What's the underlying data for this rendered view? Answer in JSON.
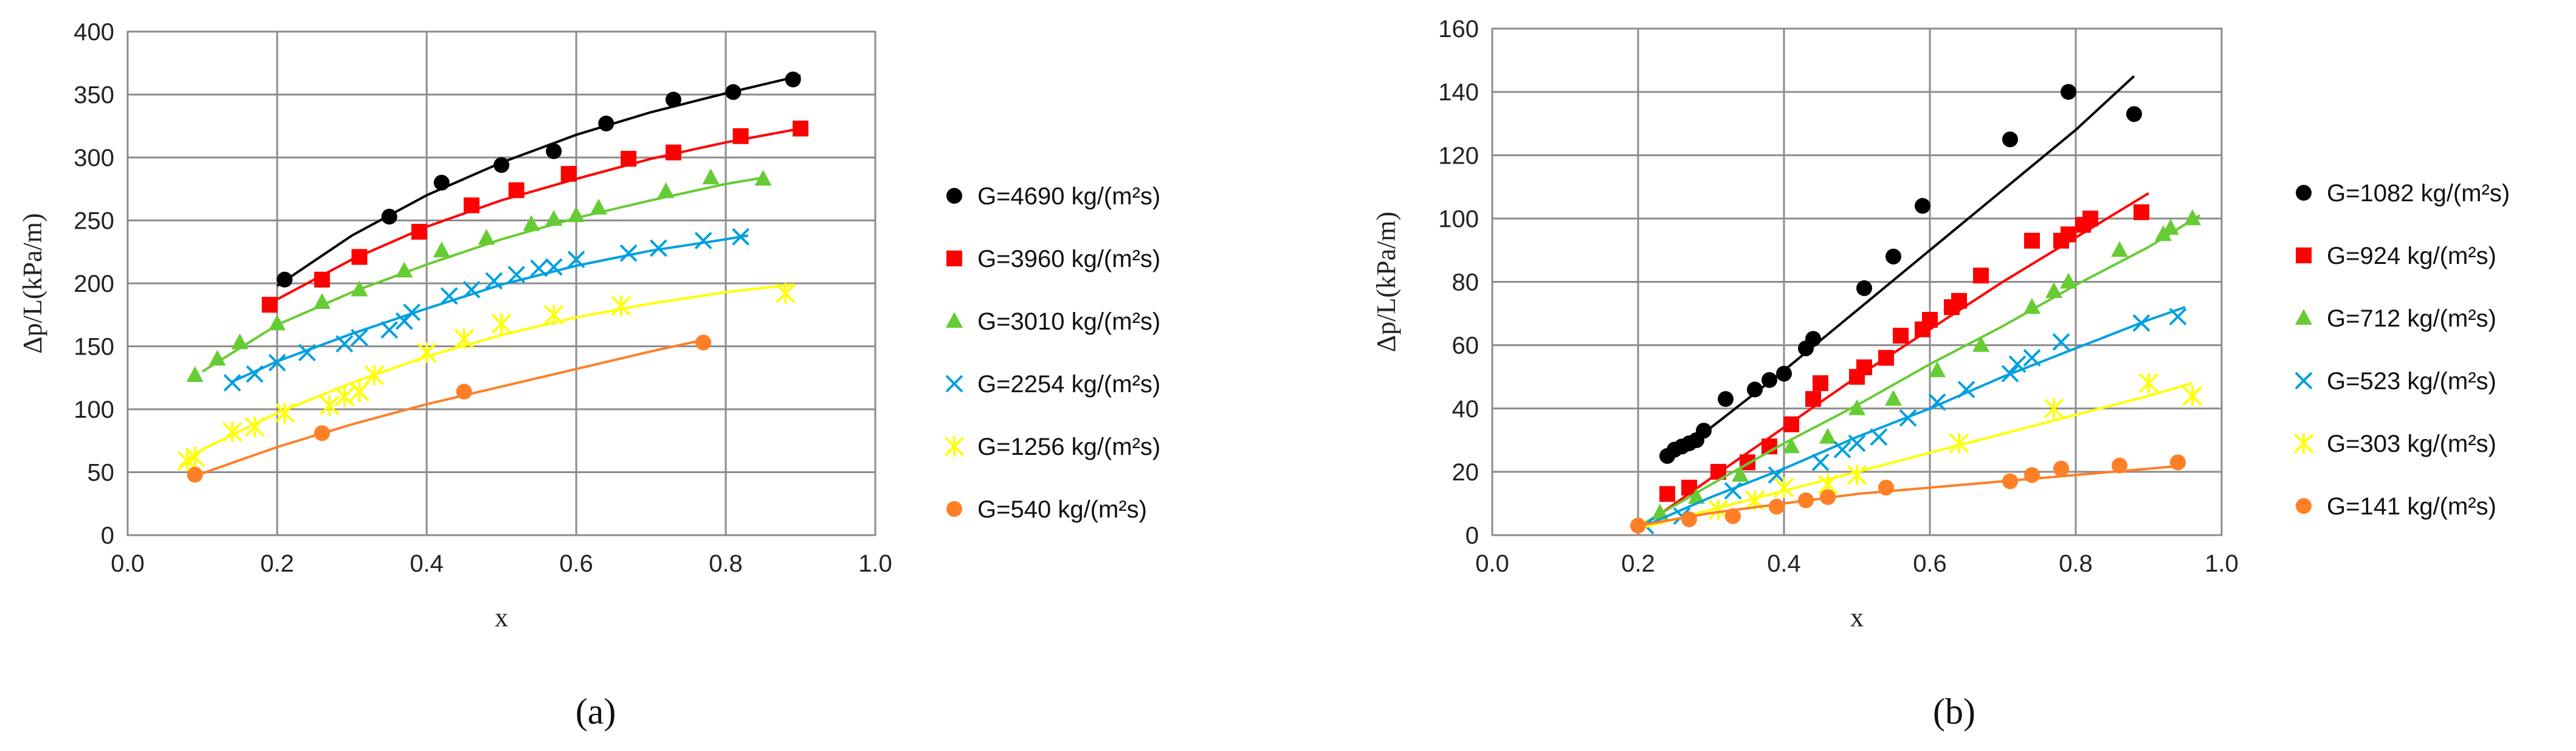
{
  "figure": {
    "panel_a_label": "(a)",
    "panel_b_label": "(b)"
  },
  "chart_data": [
    {
      "id": "a",
      "type": "scatter",
      "panel_label": "(a)",
      "xlabel": "x",
      "ylabel": "Δp/L(kPa/m)",
      "xlim": [
        0.0,
        1.0
      ],
      "ylim": [
        0,
        400
      ],
      "xticks": [
        0.0,
        0.2,
        0.4,
        0.6,
        0.8,
        1.0
      ],
      "xtick_labels": [
        "0.0",
        "0.2",
        "0.4",
        "0.6",
        "0.8",
        "1.0"
      ],
      "yticks": [
        0,
        50,
        100,
        150,
        200,
        250,
        300,
        350,
        400
      ],
      "ytick_labels": [
        "0",
        "50",
        "100",
        "150",
        "200",
        "250",
        "300",
        "350",
        "400"
      ],
      "grid": true,
      "legend_position": "right",
      "series": [
        {
          "name": "G=4690 kg/(m²s)",
          "color": "#000000",
          "marker": "circle",
          "x": [
            0.21,
            0.35,
            0.42,
            0.5,
            0.57,
            0.64,
            0.73,
            0.81,
            0.89
          ],
          "y": [
            203,
            253,
            280,
            294,
            305,
            327,
            346,
            352,
            362
          ],
          "fit_x": [
            0.2,
            0.3,
            0.4,
            0.5,
            0.6,
            0.7,
            0.8,
            0.9
          ],
          "fit_y": [
            198,
            238,
            270,
            296,
            318,
            336,
            351,
            365
          ]
        },
        {
          "name": "G=3960 kg/(m²s)",
          "color": "#ff0000",
          "marker": "square",
          "x": [
            0.19,
            0.26,
            0.31,
            0.39,
            0.46,
            0.52,
            0.59,
            0.67,
            0.73,
            0.82,
            0.9
          ],
          "y": [
            183,
            203,
            221,
            241,
            262,
            274,
            287,
            299,
            304,
            317,
            323
          ],
          "fit_x": [
            0.18,
            0.3,
            0.4,
            0.5,
            0.6,
            0.7,
            0.8,
            0.9
          ],
          "fit_y": [
            181,
            219,
            245,
            266,
            283,
            299,
            312,
            323
          ]
        },
        {
          "name": "G=3010 kg/(m²s)",
          "color": "#66cc33",
          "marker": "triangle",
          "x": [
            0.09,
            0.12,
            0.15,
            0.2,
            0.26,
            0.31,
            0.37,
            0.42,
            0.48,
            0.54,
            0.57,
            0.6,
            0.63,
            0.72,
            0.78,
            0.85
          ],
          "y": [
            127,
            140,
            153,
            168,
            185,
            195,
            210,
            226,
            236,
            247,
            251,
            254,
            260,
            273,
            284,
            283
          ],
          "fit_x": [
            0.1,
            0.2,
            0.3,
            0.4,
            0.5,
            0.6,
            0.7,
            0.8,
            0.85
          ],
          "fit_y": [
            130,
            167,
            193,
            215,
            235,
            252,
            266,
            279,
            284
          ]
        },
        {
          "name": "G=2254 kg/(m²s)",
          "color": "#00a0e0",
          "marker": "x",
          "x": [
            0.14,
            0.17,
            0.2,
            0.24,
            0.29,
            0.31,
            0.35,
            0.37,
            0.38,
            0.43,
            0.46,
            0.49,
            0.52,
            0.55,
            0.57,
            0.6,
            0.67,
            0.71,
            0.77,
            0.82
          ],
          "y": [
            121,
            128,
            137,
            145,
            152,
            157,
            163,
            170,
            177,
            190,
            195,
            202,
            207,
            212,
            213,
            219,
            224,
            228,
            234,
            237
          ],
          "fit_x": [
            0.14,
            0.2,
            0.3,
            0.4,
            0.5,
            0.6,
            0.7,
            0.8,
            0.83
          ],
          "fit_y": [
            122,
            138,
            160,
            180,
            199,
            214,
            226,
            235,
            238
          ]
        },
        {
          "name": "G=1256 kg/(m²s)",
          "color": "#ffff00",
          "marker": "star",
          "x": [
            0.08,
            0.09,
            0.14,
            0.17,
            0.21,
            0.27,
            0.29,
            0.31,
            0.33,
            0.4,
            0.45,
            0.5,
            0.57,
            0.66,
            0.88
          ],
          "y": [
            59,
            62,
            82,
            86,
            97,
            103,
            110,
            114,
            127,
            145,
            156,
            168,
            175,
            182,
            192
          ],
          "fit_x": [
            0.07,
            0.1,
            0.2,
            0.3,
            0.4,
            0.5,
            0.6,
            0.7,
            0.8,
            0.89
          ],
          "fit_y": [
            55,
            68,
            97,
            121,
            142,
            159,
            173,
            184,
            193,
            199
          ]
        },
        {
          "name": "G=540 kg/(m²s)",
          "color": "#ff7f27",
          "marker": "circle",
          "x": [
            0.09,
            0.26,
            0.45,
            0.77
          ],
          "y": [
            48,
            81,
            114,
            153
          ],
          "fit_x": [
            0.09,
            0.2,
            0.3,
            0.4,
            0.5,
            0.6,
            0.7,
            0.77
          ],
          "fit_y": [
            47,
            70,
            88,
            104,
            118,
            132,
            146,
            155
          ]
        }
      ]
    },
    {
      "id": "b",
      "type": "scatter",
      "panel_label": "(b)",
      "xlabel": "x",
      "ylabel": "Δp/L(kPa/m)",
      "xlim": [
        0.0,
        1.0
      ],
      "ylim": [
        0,
        160
      ],
      "xticks": [
        0.0,
        0.2,
        0.4,
        0.6,
        0.8,
        1.0
      ],
      "xtick_labels": [
        "0.0",
        "0.2",
        "0.4",
        "0.6",
        "0.8",
        "1.0"
      ],
      "yticks": [
        0,
        20,
        40,
        60,
        80,
        100,
        120,
        140,
        160
      ],
      "ytick_labels": [
        "0",
        "20",
        "40",
        "60",
        "80",
        "100",
        "120",
        "140",
        "160"
      ],
      "grid": true,
      "legend_position": "right",
      "series": [
        {
          "name": "G=1082 kg/(m²s)",
          "color": "#000000",
          "marker": "circle",
          "x": [
            0.24,
            0.25,
            0.26,
            0.27,
            0.28,
            0.29,
            0.32,
            0.36,
            0.38,
            0.4,
            0.43,
            0.44,
            0.51,
            0.55,
            0.59,
            0.71,
            0.79,
            0.88
          ],
          "y": [
            25,
            27,
            28,
            29,
            30,
            33,
            43,
            46,
            49,
            51,
            59,
            62,
            78,
            88,
            104,
            125,
            140,
            133
          ],
          "fit_x": [
            0.24,
            0.3,
            0.4,
            0.5,
            0.6,
            0.7,
            0.8,
            0.88
          ],
          "fit_y": [
            24,
            34,
            52,
            71,
            90,
            109,
            128,
            145
          ]
        },
        {
          "name": "G=924 kg/(m²s)",
          "color": "#ff0000",
          "marker": "square",
          "x": [
            0.24,
            0.27,
            0.31,
            0.35,
            0.38,
            0.41,
            0.44,
            0.45,
            0.5,
            0.51,
            0.54,
            0.56,
            0.59,
            0.6,
            0.63,
            0.64,
            0.67,
            0.74,
            0.78,
            0.79,
            0.81,
            0.82,
            0.89
          ],
          "y": [
            13,
            15,
            20,
            23,
            28,
            35,
            43,
            48,
            50,
            53,
            56,
            63,
            65,
            68,
            72,
            74,
            82,
            93,
            93,
            95,
            98,
            100,
            102
          ],
          "fit_x": [
            0.22,
            0.3,
            0.4,
            0.5,
            0.6,
            0.7,
            0.8,
            0.9
          ],
          "fit_y": [
            5,
            18,
            34,
            50,
            65,
            80,
            94,
            108
          ]
        },
        {
          "name": "G=712 kg/(m²s)",
          "color": "#66cc33",
          "marker": "triangle",
          "x": [
            0.23,
            0.28,
            0.34,
            0.41,
            0.46,
            0.5,
            0.55,
            0.61,
            0.67,
            0.74,
            0.77,
            0.79,
            0.86,
            0.92,
            0.93,
            0.96
          ],
          "y": [
            7,
            12,
            19,
            28,
            31,
            40,
            43,
            52,
            60,
            72,
            77,
            80,
            90,
            95,
            97,
            100
          ],
          "fit_x": [
            0.21,
            0.3,
            0.4,
            0.5,
            0.6,
            0.7,
            0.8,
            0.9,
            0.97
          ],
          "fit_y": [
            4,
            16,
            29,
            41,
            54,
            66,
            79,
            91,
            101
          ]
        },
        {
          "name": "G=523 kg/(m²s)",
          "color": "#00a0e0",
          "marker": "x",
          "x": [
            0.21,
            0.26,
            0.33,
            0.39,
            0.45,
            0.48,
            0.5,
            0.53,
            0.57,
            0.61,
            0.65,
            0.71,
            0.72,
            0.74,
            0.78,
            0.89,
            0.94
          ],
          "y": [
            3,
            6,
            14,
            19,
            23,
            27,
            29,
            31,
            37,
            42,
            46,
            51,
            54,
            56,
            61,
            67,
            69
          ],
          "fit_x": [
            0.2,
            0.3,
            0.4,
            0.5,
            0.6,
            0.7,
            0.8,
            0.9,
            0.95
          ],
          "fit_y": [
            2,
            12,
            21,
            31,
            40,
            50,
            59,
            68,
            72
          ]
        },
        {
          "name": "G=303 kg/(m²s)",
          "color": "#ffff00",
          "marker": "star",
          "x": [
            0.31,
            0.36,
            0.4,
            0.46,
            0.5,
            0.64,
            0.77,
            0.9,
            0.96
          ],
          "y": [
            8,
            11,
            15,
            16,
            19,
            29,
            40,
            48,
            44
          ],
          "fit_x": [
            0.2,
            0.3,
            0.4,
            0.5,
            0.6,
            0.7,
            0.8,
            0.9,
            0.96
          ],
          "fit_y": [
            2,
            8,
            14,
            20,
            26,
            32,
            38,
            44,
            48
          ]
        },
        {
          "name": "G=141 kg/(m²s)",
          "color": "#ff7f27",
          "marker": "circle",
          "x": [
            0.2,
            0.27,
            0.33,
            0.39,
            0.43,
            0.46,
            0.54,
            0.71,
            0.74,
            0.78,
            0.86,
            0.94
          ],
          "y": [
            3,
            5,
            6,
            9,
            11,
            12,
            15,
            17,
            19,
            21,
            22,
            23
          ],
          "fit_x": [
            0.2,
            0.3,
            0.4,
            0.5,
            0.6,
            0.7,
            0.8,
            0.9,
            0.95
          ],
          "fit_y": [
            3,
            7,
            10,
            13,
            15,
            17,
            19,
            21,
            22
          ]
        }
      ]
    }
  ]
}
